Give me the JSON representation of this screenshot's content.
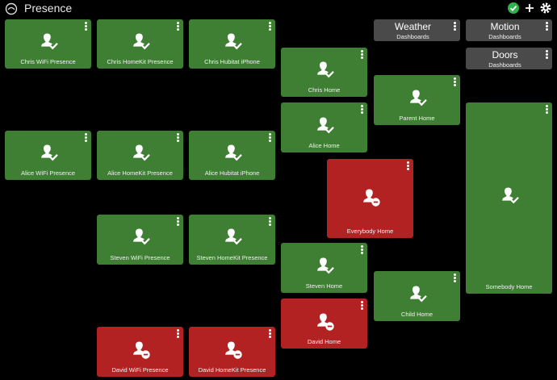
{
  "header": {
    "title": "Presence",
    "icons": [
      "hubitat-logo-icon",
      "status-check-icon",
      "add-icon",
      "settings-gear-icon"
    ],
    "colors": {
      "status_ok": "#2fb24c"
    }
  },
  "colors": {
    "present": "#3f7f34",
    "away": "#b22222",
    "dashboard": "#4a4a4a"
  },
  "tiles": {
    "chris_wifi": {
      "label": "Chris WiFi Presence",
      "state": "present"
    },
    "chris_homekit": {
      "label": "Chris HomeKit Presence",
      "state": "present"
    },
    "chris_hubitat": {
      "label": "Chris Hubitat iPhone",
      "state": "present"
    },
    "chris_home": {
      "label": "Chris Home",
      "state": "present"
    },
    "parent_home": {
      "label": "Parent Home",
      "state": "present"
    },
    "alice_wifi": {
      "label": "Alice WiFi Presence",
      "state": "present"
    },
    "alice_homekit": {
      "label": "Alice HomeKit Presence",
      "state": "present"
    },
    "alice_hubitat": {
      "label": "Alice Hubitat iPhone",
      "state": "present"
    },
    "alice_home": {
      "label": "Alice Home",
      "state": "present"
    },
    "everybody_home": {
      "label": "Everybody Home",
      "state": "away"
    },
    "somebody_home": {
      "label": "Somebody Home",
      "state": "present"
    },
    "steven_wifi": {
      "label": "Steven WiFi Presence",
      "state": "present"
    },
    "steven_homekit": {
      "label": "Steven HomeKit Presence",
      "state": "present"
    },
    "steven_home": {
      "label": "Steven Home",
      "state": "present"
    },
    "child_home": {
      "label": "Child Home",
      "state": "present"
    },
    "david_home": {
      "label": "David Home",
      "state": "away"
    },
    "david_wifi": {
      "label": "David WiFi Presence",
      "state": "away"
    },
    "david_homekit": {
      "label": "David HomeKit Presence",
      "state": "away"
    }
  },
  "dashboards": {
    "weather": {
      "title": "Weather",
      "subtitle": "Dashboards"
    },
    "motion": {
      "title": "Motion",
      "subtitle": "Dashboards"
    },
    "doors": {
      "title": "Doors",
      "subtitle": "Dashboards"
    }
  }
}
